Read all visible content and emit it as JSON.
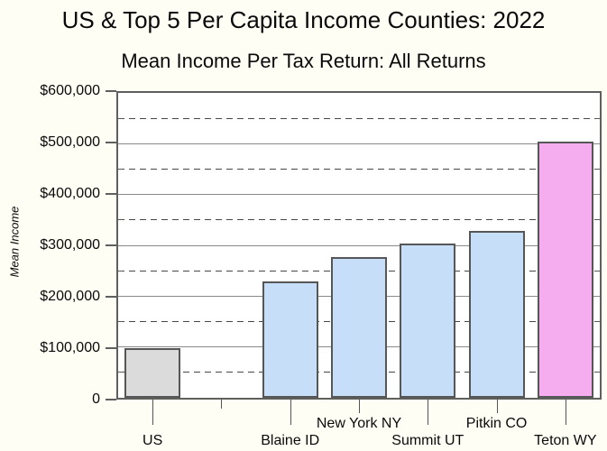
{
  "chart_data": {
    "type": "bar",
    "title": "US & Top 5 Per Capita Income Counties: 2022",
    "subtitle": "Mean Income Per Tax Return: All Returns",
    "ylabel": "Mean Income",
    "xlabel": "",
    "ylim": [
      0,
      600000
    ],
    "y_major_step": 100000,
    "y_minor_step": 50000,
    "y_tick_labels": [
      "$600,000",
      "$500,000",
      "$400,000",
      "$300,000",
      "$200,000",
      "$100,000",
      "0"
    ],
    "grid": {
      "major_style": "solid",
      "minor_style": "dashed"
    },
    "legend": "none",
    "categories": [
      "US",
      "",
      "Blaine ID",
      "New York NY",
      "Summit UT",
      "Pitkin CO",
      "Teton WY"
    ],
    "series": [
      {
        "name": "Mean Income Per Tax Return: All Returns",
        "values": [
          97000,
          null,
          229000,
          277000,
          304000,
          329000,
          505000
        ]
      }
    ],
    "bar_colors": [
      "#dbdbdb",
      null,
      "#c6def7",
      "#c6def7",
      "#c6def7",
      "#c6def7",
      "#f5adef"
    ],
    "label_rows": [
      "lower",
      "none",
      "lower",
      "upper",
      "lower",
      "upper",
      "lower"
    ],
    "colors": {
      "background": "#fffef4",
      "plot_background": "#ffffff",
      "us_bar": "#dbdbdb",
      "county_bar": "#c6def7",
      "top_county_bar": "#f5adef",
      "bar_border": "#565656",
      "grid_major": "#8a8a8a",
      "grid_minor": "#474747",
      "axis": "#5f5f5f",
      "text": "#0a0a0a"
    }
  }
}
